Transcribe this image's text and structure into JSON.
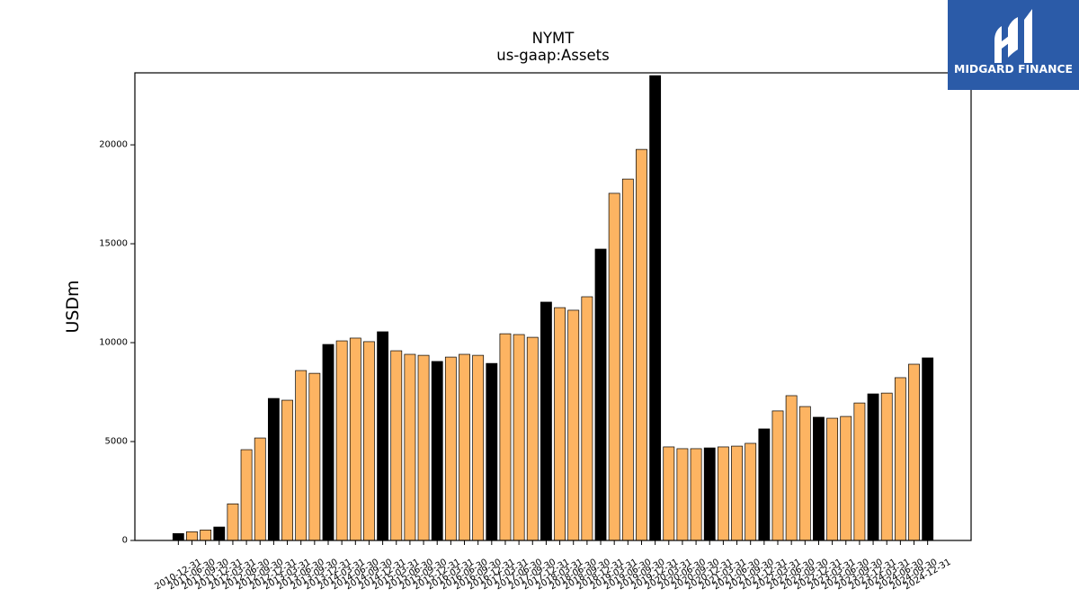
{
  "logo": {
    "text": "MIDGARD FINANCE",
    "background": "#2b5ba8",
    "foreground": "#ffffff",
    "icon": "midgard-logo-icon"
  },
  "chart_data": {
    "type": "bar",
    "title": "NYMT",
    "subtitle": "us-gaap:Assets",
    "ylabel": "USDm",
    "ylim": [
      0,
      23640
    ],
    "yticks": [
      0,
      5000,
      10000,
      15000,
      20000
    ],
    "grid": false,
    "categories": [
      "2010-12-31",
      "2011-06-30",
      "2011-09-30",
      "2011-12-31",
      "2012-03-31",
      "2012-06-30",
      "2012-09-30",
      "2012-12-31",
      "2013-03-31",
      "2013-06-30",
      "2013-09-30",
      "2013-12-31",
      "2014-03-31",
      "2014-06-30",
      "2014-09-30",
      "2014-12-31",
      "2015-03-31",
      "2015-06-30",
      "2015-09-30",
      "2015-12-31",
      "2016-03-31",
      "2016-06-30",
      "2016-09-30",
      "2016-12-31",
      "2017-03-31",
      "2017-06-30",
      "2017-09-30",
      "2017-12-31",
      "2018-03-31",
      "2018-06-30",
      "2018-09-30",
      "2018-12-31",
      "2019-03-31",
      "2019-06-30",
      "2019-09-30",
      "2019-12-31",
      "2020-03-31",
      "2020-06-30",
      "2020-09-30",
      "2020-12-31",
      "2021-03-31",
      "2021-06-30",
      "2021-09-30",
      "2021-12-31",
      "2022-03-31",
      "2022-06-30",
      "2022-09-30",
      "2022-12-31",
      "2023-03-31",
      "2023-06-30",
      "2023-09-30",
      "2023-12-31",
      "2024-03-31",
      "2024-06-30",
      "2024-09-30",
      "2024-12-31"
    ],
    "values": [
      350,
      440,
      530,
      680,
      1850,
      4590,
      5180,
      7180,
      7090,
      8590,
      8450,
      9910,
      10090,
      10230,
      10050,
      10550,
      9590,
      9410,
      9360,
      9050,
      9270,
      9410,
      9360,
      8950,
      10450,
      10410,
      10270,
      12050,
      11770,
      11640,
      12320,
      14730,
      17550,
      18270,
      19770,
      23500,
      4730,
      4640,
      4640,
      4680,
      4730,
      4770,
      4910,
      5640,
      6550,
      7320,
      6770,
      6230,
      6180,
      6270,
      6950,
      7410,
      7450,
      8230,
      8910,
      9230
    ],
    "bar_colors": [
      "#000000",
      "#fdb462",
      "#fdb462",
      "#000000",
      "#fdb462",
      "#fdb462",
      "#fdb462",
      "#000000",
      "#fdb462",
      "#fdb462",
      "#fdb462",
      "#000000",
      "#fdb462",
      "#fdb462",
      "#fdb462",
      "#000000",
      "#fdb462",
      "#fdb462",
      "#fdb462",
      "#000000",
      "#fdb462",
      "#fdb462",
      "#fdb462",
      "#000000",
      "#fdb462",
      "#fdb462",
      "#fdb462",
      "#000000",
      "#fdb462",
      "#fdb462",
      "#fdb462",
      "#000000",
      "#fdb462",
      "#fdb462",
      "#fdb462",
      "#000000",
      "#fdb462",
      "#fdb462",
      "#fdb462",
      "#000000",
      "#fdb462",
      "#fdb462",
      "#fdb462",
      "#000000",
      "#fdb462",
      "#fdb462",
      "#fdb462",
      "#000000",
      "#fdb462",
      "#fdb462",
      "#fdb462",
      "#000000",
      "#fdb462",
      "#fdb462",
      "#fdb462",
      "#000000"
    ],
    "bar_edge_color": "#000000"
  }
}
